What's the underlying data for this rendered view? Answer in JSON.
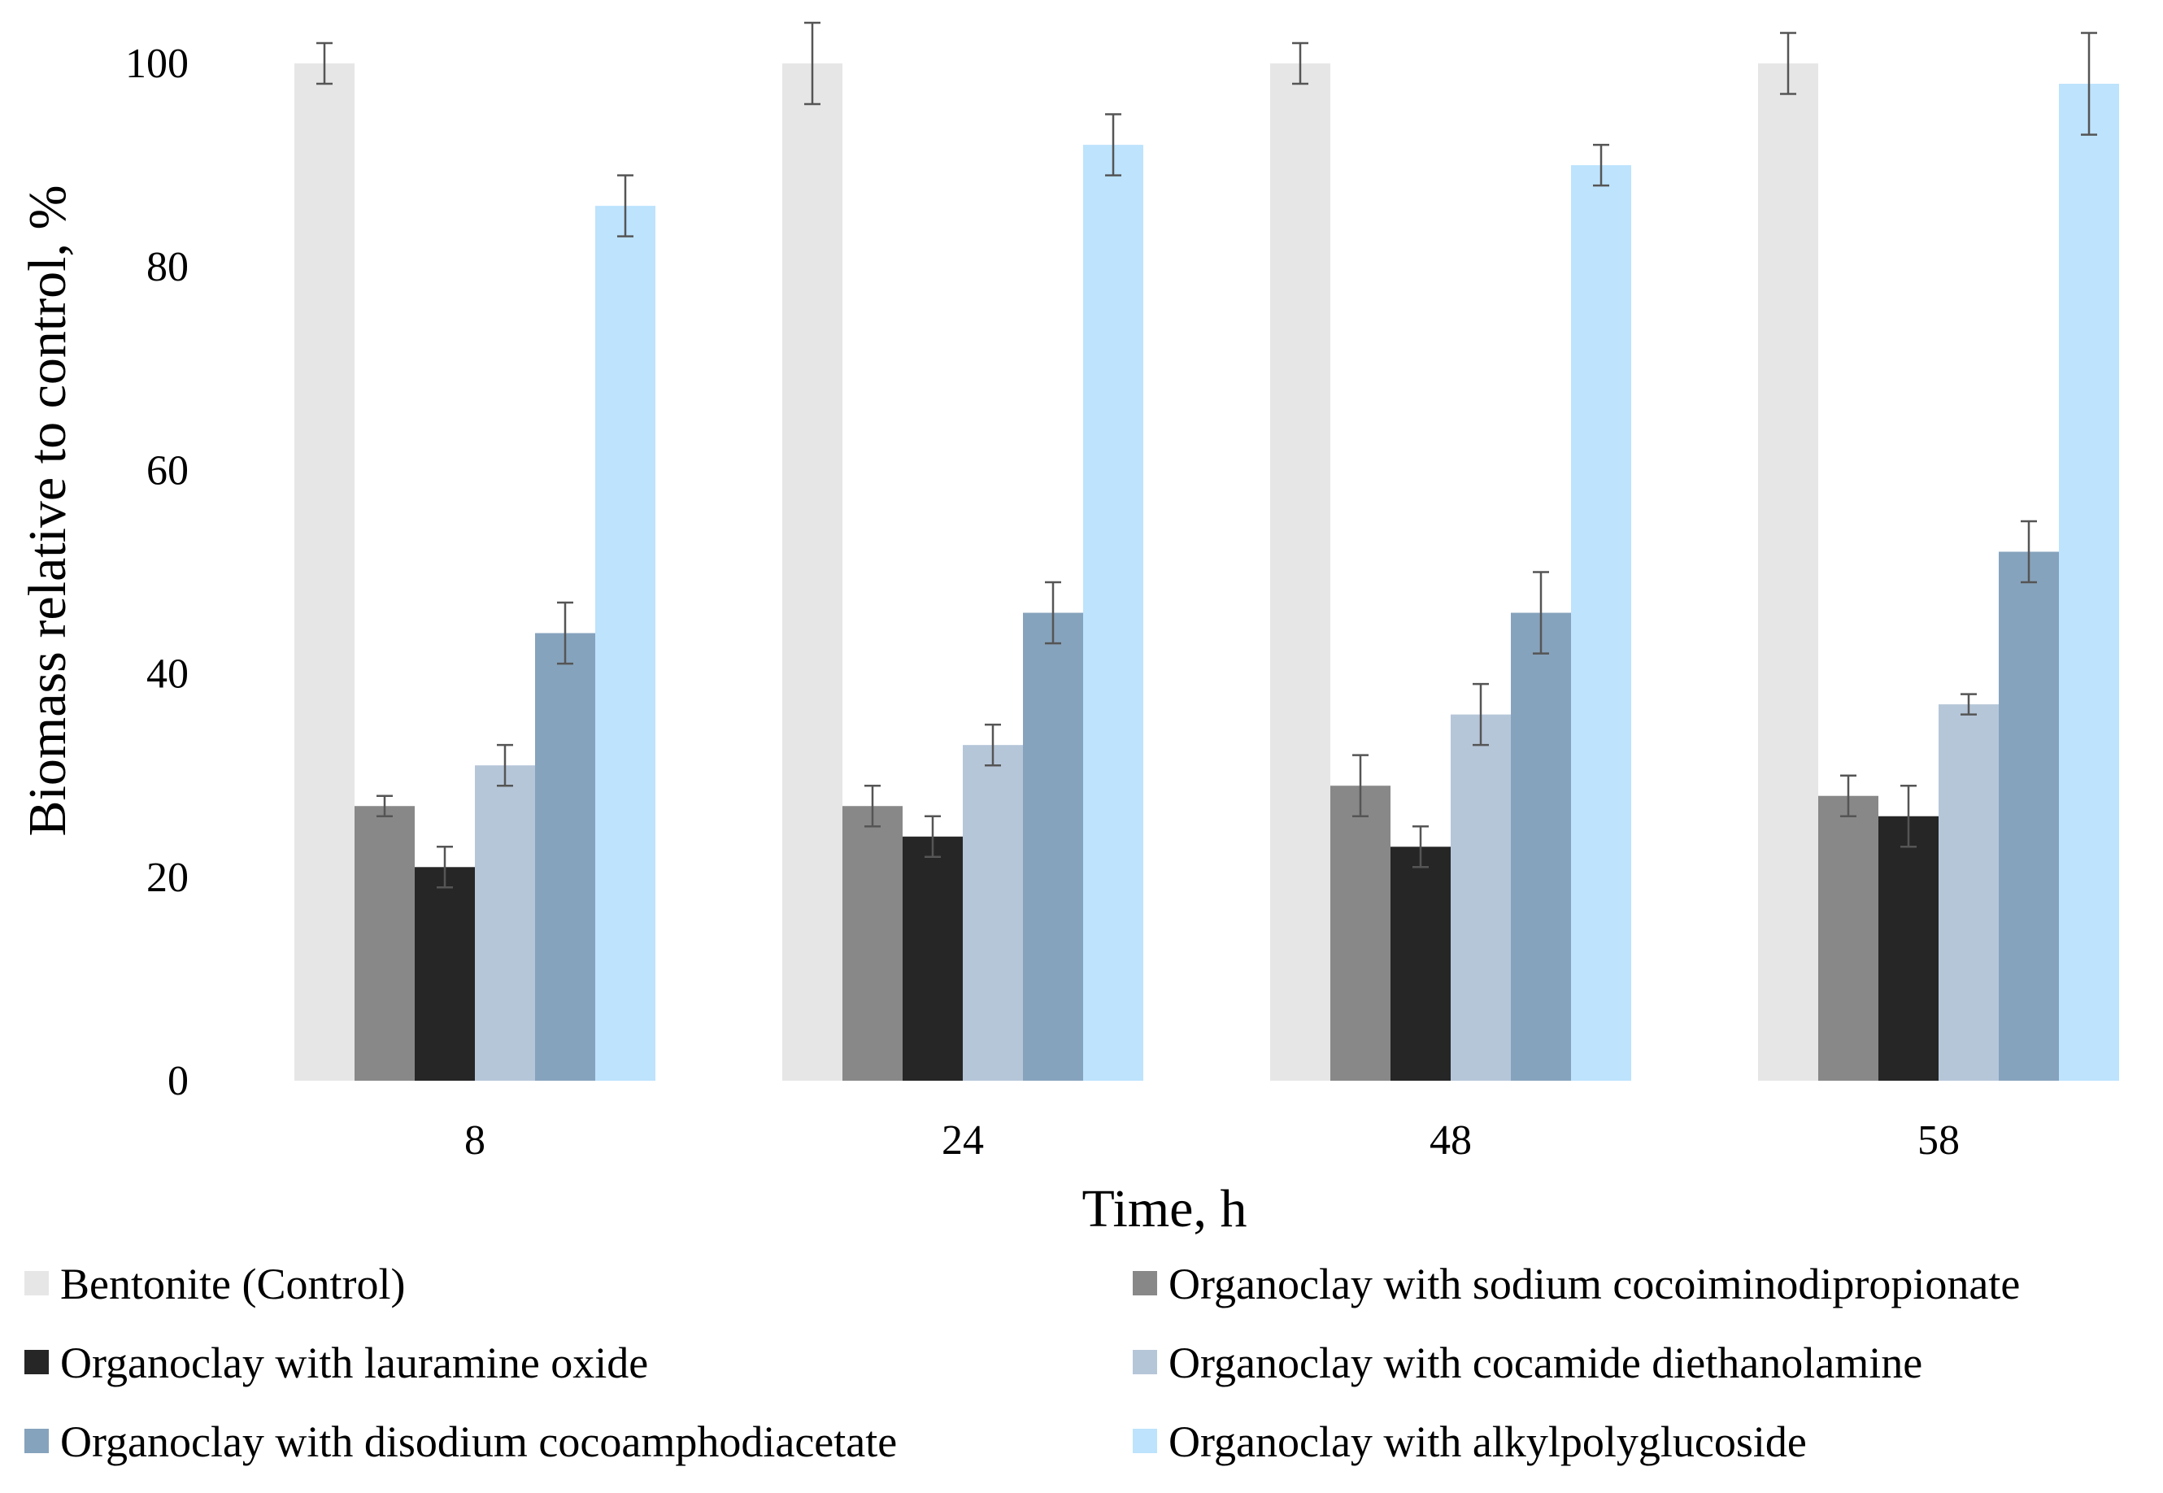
{
  "chart_data": {
    "type": "bar",
    "title": "",
    "xlabel": "Time, h",
    "ylabel": "Biomass relative to control, %",
    "ylim": [
      0,
      100
    ],
    "yticks": [
      0,
      20,
      40,
      60,
      80,
      100
    ],
    "grid": false,
    "legend_position": "bottom",
    "categories": [
      "8",
      "24",
      "48",
      "58"
    ],
    "series": [
      {
        "name": "Bentonite (Control)",
        "color": "#e6e6e6",
        "values": [
          100,
          100,
          100,
          100
        ],
        "errors": [
          2,
          4,
          2,
          3
        ]
      },
      {
        "name": "Organoclay with sodium cocoiminodipropionate",
        "color": "#888888",
        "values": [
          27,
          27,
          29,
          28
        ],
        "errors": [
          1,
          2,
          3,
          2
        ]
      },
      {
        "name": "Organoclay with lauramine oxide",
        "color": "#262626",
        "values": [
          21,
          24,
          23,
          26
        ],
        "errors": [
          2,
          2,
          2,
          3
        ]
      },
      {
        "name": "Organoclay with cocamide diethanolamine",
        "color": "#b6c6d9",
        "values": [
          31,
          33,
          36,
          37
        ],
        "errors": [
          2,
          2,
          3,
          1
        ]
      },
      {
        "name": "Organoclay with disodium cocoamphodiacetate",
        "color": "#86a3bd",
        "values": [
          44,
          46,
          46,
          52
        ],
        "errors": [
          3,
          3,
          4,
          3
        ]
      },
      {
        "name": "Organoclay with alkylpolyglucoside",
        "color": "#bde3fd",
        "values": [
          86,
          92,
          90,
          98
        ],
        "errors": [
          3,
          3,
          2,
          5
        ]
      }
    ]
  }
}
